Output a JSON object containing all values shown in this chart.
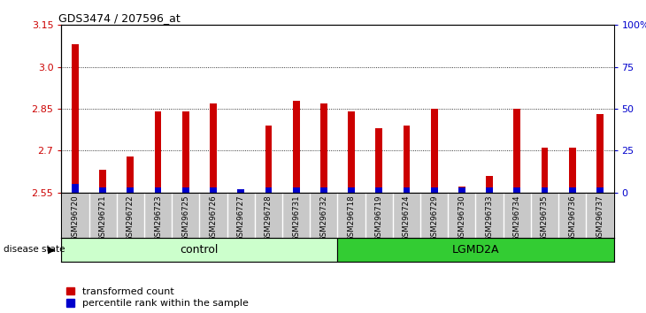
{
  "title": "GDS3474 / 207596_at",
  "samples": [
    "GSM296720",
    "GSM296721",
    "GSM296722",
    "GSM296723",
    "GSM296725",
    "GSM296726",
    "GSM296727",
    "GSM296728",
    "GSM296731",
    "GSM296732",
    "GSM296718",
    "GSM296719",
    "GSM296724",
    "GSM296729",
    "GSM296730",
    "GSM296733",
    "GSM296734",
    "GSM296735",
    "GSM296736",
    "GSM296737"
  ],
  "transformed_count": [
    3.08,
    2.63,
    2.68,
    2.84,
    2.84,
    2.87,
    2.56,
    2.79,
    2.88,
    2.87,
    2.84,
    2.78,
    2.79,
    2.85,
    2.57,
    2.61,
    2.85,
    2.71,
    2.71,
    2.83
  ],
  "percentile_rank": [
    5,
    3,
    3,
    3,
    3,
    3,
    2,
    3,
    3,
    3,
    3,
    3,
    3,
    3,
    3,
    3,
    3,
    3,
    3,
    3
  ],
  "groups": [
    "control",
    "control",
    "control",
    "control",
    "control",
    "control",
    "control",
    "control",
    "control",
    "control",
    "LGMD2A",
    "LGMD2A",
    "LGMD2A",
    "LGMD2A",
    "LGMD2A",
    "LGMD2A",
    "LGMD2A",
    "LGMD2A",
    "LGMD2A",
    "LGMD2A"
  ],
  "ylim_left": [
    2.55,
    3.15
  ],
  "ylim_right": [
    0,
    100
  ],
  "yticks_left": [
    2.55,
    2.7,
    2.85,
    3.0,
    3.15
  ],
  "yticks_right": [
    0,
    25,
    50,
    75,
    100
  ],
  "ytick_labels_right": [
    "0",
    "25",
    "50",
    "75",
    "100%"
  ],
  "red_color": "#cc0000",
  "blue_color": "#0000cc",
  "control_color": "#ccffcc",
  "lgmd2a_color": "#33cc33",
  "bg_color": "#c8c8c8",
  "legend_label_red": "transformed count",
  "legend_label_blue": "percentile rank within the sample",
  "disease_state_label": "disease state",
  "control_label": "control",
  "lgmd2a_label": "LGMD2A"
}
